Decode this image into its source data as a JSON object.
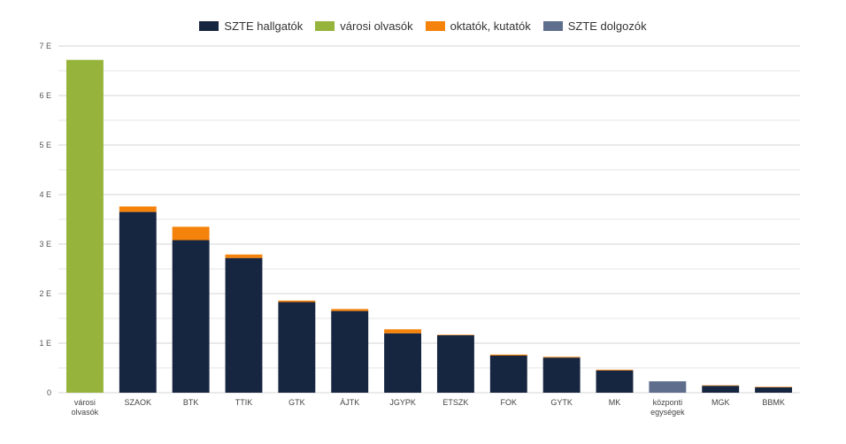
{
  "chart_data": {
    "type": "bar",
    "stacked": true,
    "categories": [
      "városi olvasók",
      "SZAOK",
      "BTK",
      "TTIK",
      "GTK",
      "ÁJTK",
      "JGYPK",
      "ETSZK",
      "FOK",
      "GYTK",
      "MK",
      "központi egységek",
      "MGK",
      "BBMK"
    ],
    "category_lines": [
      [
        "városi",
        "olvasók"
      ],
      [
        "SZAOK"
      ],
      [
        "BTK"
      ],
      [
        "TTIK"
      ],
      [
        "GTK"
      ],
      [
        "ÁJTK"
      ],
      [
        "JGYPK"
      ],
      [
        "ETSZK"
      ],
      [
        "FOK"
      ],
      [
        "GYTK"
      ],
      [
        "MK"
      ],
      [
        "központi",
        "egységek"
      ],
      [
        "MGK"
      ],
      [
        "BBMK"
      ]
    ],
    "series": [
      {
        "name": "SZTE hallgatók",
        "color": "#172640",
        "values": [
          0,
          3650,
          3080,
          2720,
          1830,
          1650,
          1200,
          1160,
          750,
          710,
          450,
          0,
          140,
          110
        ]
      },
      {
        "name": "városi olvasók",
        "color": "#96b43c",
        "values": [
          6720,
          0,
          0,
          0,
          0,
          0,
          0,
          0,
          0,
          0,
          0,
          0,
          0,
          0
        ]
      },
      {
        "name": "oktatók, kutatók",
        "color": "#f5820a",
        "values": [
          0,
          110,
          270,
          70,
          30,
          40,
          80,
          10,
          20,
          15,
          15,
          0,
          10,
          10
        ]
      },
      {
        "name": "SZTE dolgozók",
        "color": "#5e6e8c",
        "values": [
          0,
          0,
          0,
          0,
          0,
          0,
          0,
          0,
          0,
          0,
          0,
          230,
          0,
          0
        ]
      }
    ],
    "ylim": [
      0,
      7000
    ],
    "y_ticks": [
      0,
      1000,
      2000,
      3000,
      4000,
      5000,
      6000,
      7000
    ],
    "y_tick_labels": [
      "0",
      "1 E",
      "2 E",
      "3 E",
      "4 E",
      "5 E",
      "6 E",
      "7 E"
    ],
    "grid": true,
    "legend_position": "top-center",
    "xlabel": "",
    "ylabel": "",
    "title": ""
  }
}
